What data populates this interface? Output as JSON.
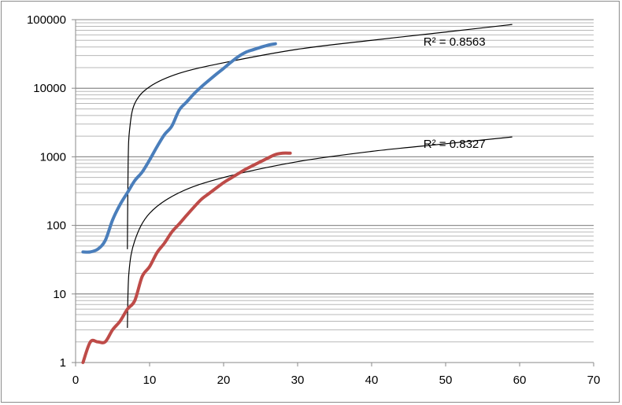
{
  "chart_data": {
    "type": "line",
    "title": "",
    "xlabel": "",
    "ylabel": "",
    "y_scale": "log",
    "xlim": [
      0,
      70
    ],
    "ylim": [
      1,
      100000
    ],
    "x_ticks": [
      0,
      10,
      20,
      30,
      40,
      50,
      60,
      70
    ],
    "y_ticks": [
      1,
      10,
      100,
      1000,
      10000,
      100000
    ],
    "grid": "horizontal minor and major gridlines",
    "legend": "none",
    "series": [
      {
        "color": "#4a7ebb",
        "points": [
          [
            1,
            41
          ],
          [
            2,
            41
          ],
          [
            3,
            45
          ],
          [
            4,
            60
          ],
          [
            5,
            120
          ],
          [
            6,
            200
          ],
          [
            7,
            300
          ],
          [
            8,
            450
          ],
          [
            9,
            600
          ],
          [
            10,
            900
          ],
          [
            11,
            1400
          ],
          [
            12,
            2100
          ],
          [
            13,
            2800
          ],
          [
            14,
            4800
          ],
          [
            15,
            6300
          ],
          [
            16,
            8300
          ],
          [
            17,
            10500
          ],
          [
            18,
            13000
          ],
          [
            19,
            16000
          ],
          [
            20,
            19500
          ],
          [
            21,
            24000
          ],
          [
            22,
            29000
          ],
          [
            23,
            33500
          ],
          [
            24,
            36500
          ],
          [
            25,
            39500
          ],
          [
            26,
            42500
          ],
          [
            27,
            44500
          ]
        ]
      },
      {
        "color": "#be4b48",
        "points": [
          [
            1,
            1
          ],
          [
            2,
            2
          ],
          [
            3,
            2
          ],
          [
            4,
            2
          ],
          [
            5,
            3
          ],
          [
            6,
            4
          ],
          [
            7,
            6
          ],
          [
            8,
            8
          ],
          [
            9,
            18
          ],
          [
            10,
            25
          ],
          [
            11,
            40
          ],
          [
            12,
            55
          ],
          [
            13,
            80
          ],
          [
            14,
            105
          ],
          [
            15,
            140
          ],
          [
            16,
            185
          ],
          [
            17,
            240
          ],
          [
            18,
            290
          ],
          [
            19,
            350
          ],
          [
            20,
            420
          ],
          [
            21,
            490
          ],
          [
            22,
            570
          ],
          [
            23,
            660
          ],
          [
            24,
            750
          ],
          [
            25,
            850
          ],
          [
            26,
            960
          ],
          [
            27,
            1080
          ],
          [
            28,
            1130
          ],
          [
            29,
            1130
          ]
        ]
      }
    ],
    "trendlines": [
      {
        "type": "logarithmic",
        "color": "#000000",
        "x_range": [
          7,
          59
        ],
        "points": [
          [
            7,
            45
          ],
          [
            7.1,
            800
          ],
          [
            7.3,
            2500
          ],
          [
            8,
            6000
          ],
          [
            10,
            10500
          ],
          [
            14,
            16500
          ],
          [
            20,
            23500
          ],
          [
            30,
            37000
          ],
          [
            40,
            50000
          ],
          [
            50,
            66000
          ],
          [
            59,
            85000
          ]
        ],
        "r2_label": "R² = 0.8563"
      },
      {
        "type": "logarithmic",
        "color": "#000000",
        "x_range": [
          7,
          59
        ],
        "points": [
          [
            7,
            3.2
          ],
          [
            7.2,
            20
          ],
          [
            8,
            60
          ],
          [
            10,
            150
          ],
          [
            14,
            300
          ],
          [
            20,
            500
          ],
          [
            30,
            850
          ],
          [
            40,
            1200
          ],
          [
            50,
            1550
          ],
          [
            59,
            1950
          ]
        ],
        "r2_label": "R² = 0.8327"
      }
    ]
  }
}
